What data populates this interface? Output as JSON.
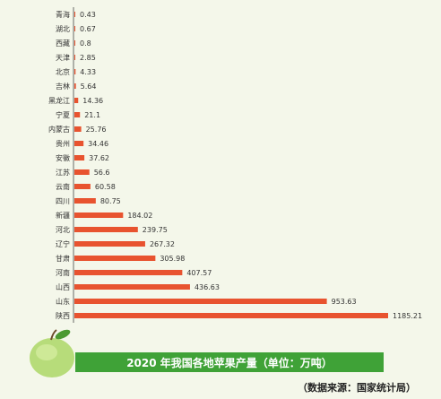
{
  "chart_data": {
    "type": "bar",
    "orientation": "horizontal",
    "title": "2020 年我国各地苹果产量（单位：万吨）",
    "source": "（数据来源：国家统计局）",
    "categories": [
      "青海",
      "湖北",
      "西藏",
      "天津",
      "北京",
      "吉林",
      "黑龙江",
      "宁夏",
      "内蒙古",
      "贵州",
      "安徽",
      "江苏",
      "云南",
      "四川",
      "新疆",
      "河北",
      "辽宁",
      "甘肃",
      "河南",
      "山西",
      "山东",
      "陕西"
    ],
    "values": [
      0.43,
      0.67,
      0.8,
      2.85,
      4.33,
      5.64,
      14.36,
      21.1,
      25.76,
      34.46,
      37.62,
      56.6,
      60.58,
      80.75,
      184.02,
      239.75,
      267.32,
      305.98,
      407.57,
      436.63,
      953.63,
      1185.21
    ],
    "value_labels": [
      "0.43",
      "0.67",
      "0.8",
      "2.85",
      "4.33",
      "5.64",
      "14.36",
      "21.1",
      "25.76",
      "34.46",
      "37.62",
      "56.6",
      "60.58",
      "80.75",
      "184.02",
      "239.75",
      "267.32",
      "305.98",
      "407.57",
      "436.63",
      "953.63",
      "1185.21"
    ],
    "xlim": [
      0,
      1185.21
    ],
    "grid": false,
    "bar_color": "#e8532f"
  }
}
